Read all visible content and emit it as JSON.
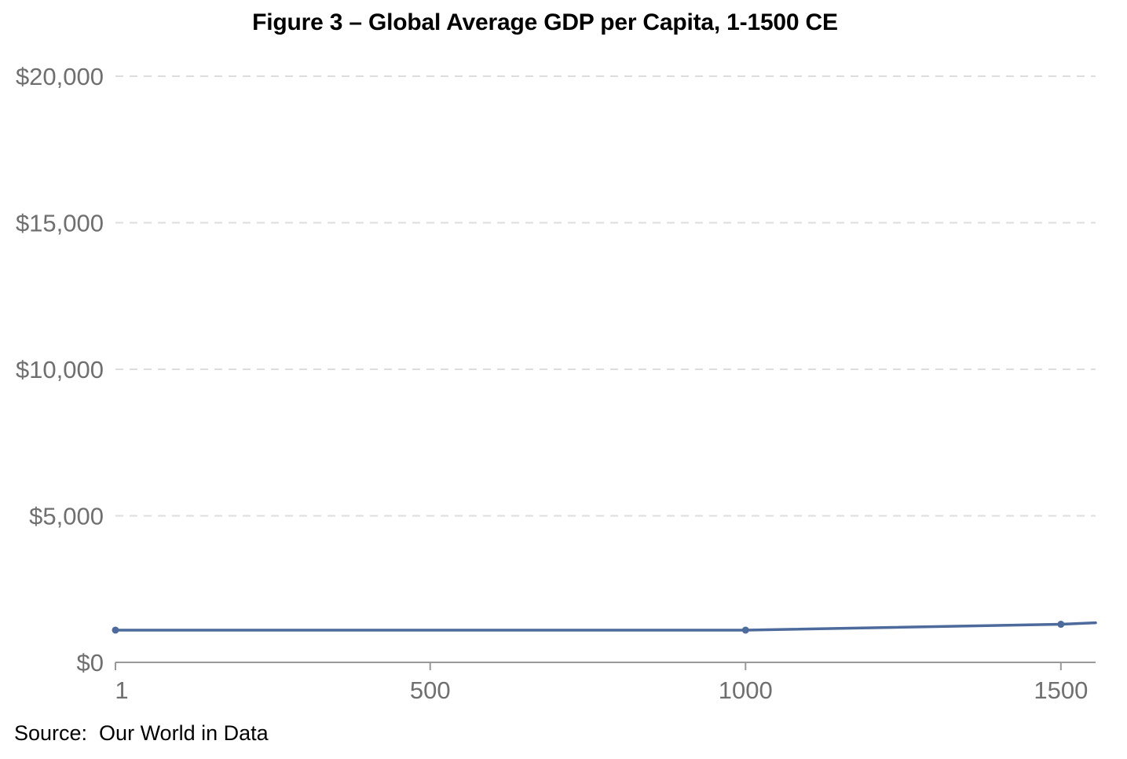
{
  "chart_data": {
    "type": "line",
    "title": "Figure 3 – Global Average GDP per Capita, 1-1500 CE",
    "xlabel": "",
    "ylabel": "",
    "xlim": [
      1,
      1555
    ],
    "ylim": [
      0,
      20000
    ],
    "x_ticks": [
      {
        "value": 1,
        "label": "1"
      },
      {
        "value": 500,
        "label": "500"
      },
      {
        "value": 1000,
        "label": "1000"
      },
      {
        "value": 1500,
        "label": "1500"
      }
    ],
    "y_ticks": [
      {
        "value": 0,
        "label": "$0"
      },
      {
        "value": 5000,
        "label": "$5,000"
      },
      {
        "value": 10000,
        "label": "$10,000"
      },
      {
        "value": 15000,
        "label": "$15,000"
      },
      {
        "value": 20000,
        "label": "$20,000"
      }
    ],
    "grid": "horizontal dashed",
    "series": [
      {
        "color": "#4c6a9c",
        "points": [
          {
            "x": 1,
            "y": 1100,
            "marker": true
          },
          {
            "x": 1000,
            "y": 1100,
            "marker": true
          },
          {
            "x": 1500,
            "y": 1300,
            "marker": true
          },
          {
            "x": 1555,
            "y": 1350,
            "marker": false
          }
        ]
      }
    ],
    "source": "Source:  Our World in Data"
  },
  "colors": {
    "line": "#4c6a9c",
    "grid": "#dddddd",
    "axis": "#999999",
    "tick_text": "#6f6f6f"
  }
}
